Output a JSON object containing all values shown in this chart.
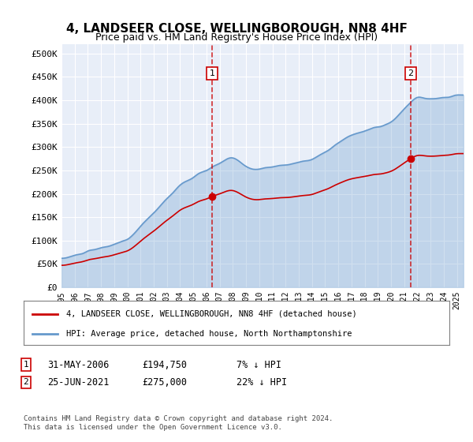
{
  "title": "4, LANDSEER CLOSE, WELLINGBOROUGH, NN8 4HF",
  "subtitle": "Price paid vs. HM Land Registry's House Price Index (HPI)",
  "ylabel_ticks": [
    "£0",
    "£50K",
    "£100K",
    "£150K",
    "£200K",
    "£250K",
    "£300K",
    "£350K",
    "£400K",
    "£450K",
    "£500K"
  ],
  "ytick_values": [
    0,
    50000,
    100000,
    150000,
    200000,
    250000,
    300000,
    350000,
    400000,
    450000,
    500000
  ],
  "ylim": [
    0,
    520000
  ],
  "xlim_start": 1995.0,
  "xlim_end": 2025.5,
  "bg_color": "#e8eef8",
  "plot_bg_color": "#e8eef8",
  "hpi_color": "#6699cc",
  "price_color": "#cc0000",
  "marker1_x": 2006.42,
  "marker1_y": 194750,
  "marker2_x": 2021.48,
  "marker2_y": 275000,
  "marker1_label": "1",
  "marker2_label": "2",
  "marker_dashed_color": "#cc0000",
  "legend_line1": "4, LANDSEER CLOSE, WELLINGBOROUGH, NN8 4HF (detached house)",
  "legend_line2": "HPI: Average price, detached house, North Northamptonshire",
  "table_row1": [
    "1",
    "31-MAY-2006",
    "£194,750",
    "7% ↓ HPI"
  ],
  "table_row2": [
    "2",
    "25-JUN-2021",
    "£275,000",
    "22% ↓ HPI"
  ],
  "footnote": "Contains HM Land Registry data © Crown copyright and database right 2024.\nThis data is licensed under the Open Government Licence v3.0.",
  "xtick_years": [
    1995,
    1996,
    1997,
    1998,
    1999,
    2000,
    2001,
    2002,
    2003,
    2004,
    2005,
    2006,
    2007,
    2008,
    2009,
    2010,
    2011,
    2012,
    2013,
    2014,
    2015,
    2016,
    2017,
    2018,
    2019,
    2020,
    2021,
    2022,
    2023,
    2024,
    2025
  ]
}
